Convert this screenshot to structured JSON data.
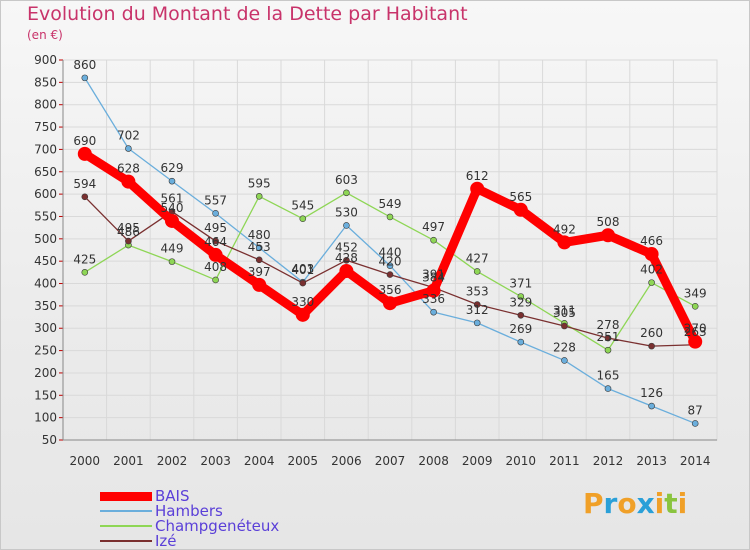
{
  "chart_data": {
    "type": "line",
    "title": "Evolution du Montant de la Dette par Habitant",
    "unit_label": "(en €)",
    "xlabel": "",
    "ylabel": "",
    "x": [
      2000,
      2001,
      2002,
      2003,
      2004,
      2005,
      2006,
      2007,
      2008,
      2009,
      2010,
      2011,
      2012,
      2013,
      2014
    ],
    "ylim": [
      50,
      900
    ],
    "yticks": [
      50,
      100,
      150,
      200,
      250,
      300,
      350,
      400,
      450,
      500,
      550,
      600,
      650,
      700,
      750,
      800,
      850,
      900
    ],
    "grid": true,
    "legend_position": "bottom-left",
    "series": [
      {
        "name": "BAIS",
        "color": "#ff0000",
        "values": [
          690,
          628,
          540,
          464,
          397,
          330,
          428,
          356,
          384,
          612,
          565,
          492,
          508,
          466,
          270
        ]
      },
      {
        "name": "Hambers",
        "color": "#6aaedc",
        "values": [
          860,
          702,
          629,
          557,
          480,
          403,
          530,
          440,
          336,
          312,
          269,
          228,
          165,
          126,
          87
        ]
      },
      {
        "name": "Champgenéteux",
        "color": "#8ed655",
        "values": [
          425,
          486,
          449,
          408,
          595,
          545,
          603,
          549,
          497,
          427,
          371,
          311,
          251,
          402,
          349
        ]
      },
      {
        "name": "Izé",
        "color": "#7a3030",
        "values": [
          594,
          495,
          561,
          495,
          453,
          401,
          452,
          420,
          391,
          353,
          329,
          305,
          278,
          260,
          263
        ]
      }
    ]
  },
  "brand": {
    "text": "Proxiti",
    "letter_colors": [
      "#f0a028",
      "#2aa0d8",
      "#f0a028",
      "#2aa0d8",
      "#f0a028",
      "#8ac43f",
      "#f0a028"
    ]
  }
}
